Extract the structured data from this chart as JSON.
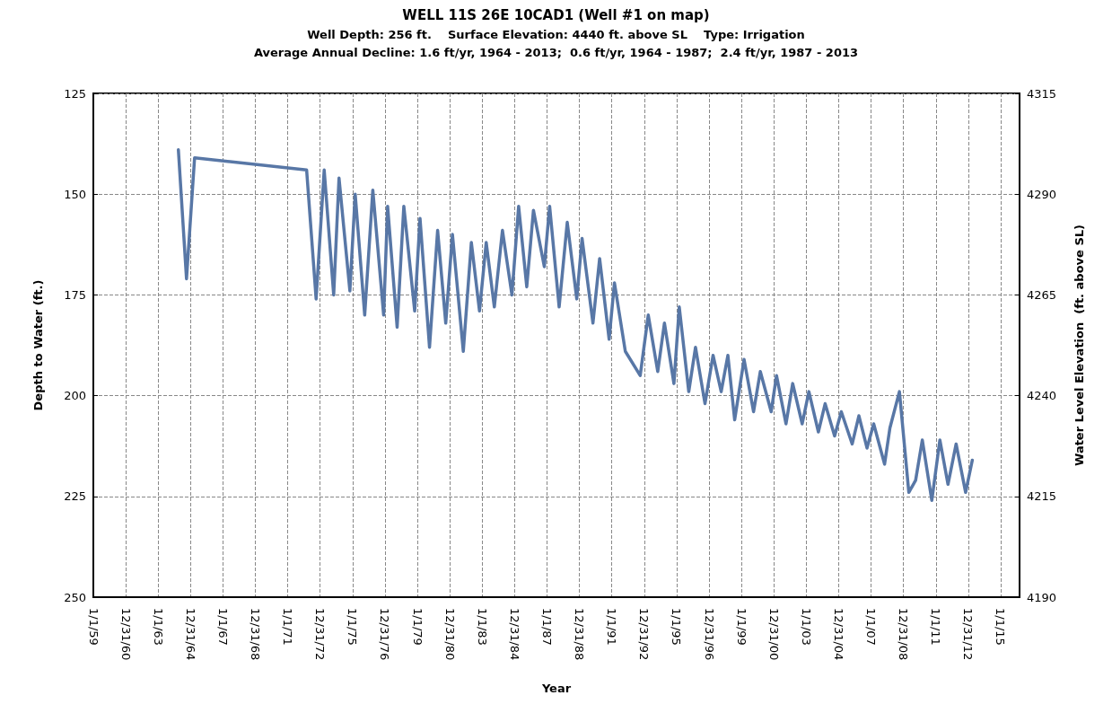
{
  "chart_data": {
    "type": "line",
    "title": "WELL 11S 26E 10CAD1 (Well #1 on map)",
    "subtitle": "Well Depth: 256 ft.    Surface Elevation: 4440 ft. above SL    Type: Irrigation\nAverage Annual Decline: 1.6 ft/yr, 1964 - 2013;  0.6 ft/yr, 1964 - 1987;  2.4 ft/yr, 1987 - 2013",
    "xlabel": "Year",
    "ylabel": "Depth to Water (ft.)",
    "y2label": "Water Level Elevation  (ft. above SL)",
    "x": [
      "1964-04",
      "1964-10",
      "1965-04",
      "1972-03",
      "1972-10",
      "1973-04",
      "1973-11",
      "1974-03",
      "1974-11",
      "1975-03",
      "1975-10",
      "1976-04",
      "1976-12",
      "1977-03",
      "1977-10",
      "1978-03",
      "1978-11",
      "1979-03",
      "1979-10",
      "1980-04",
      "1980-10",
      "1981-03",
      "1981-11",
      "1982-05",
      "1982-11",
      "1983-04",
      "1983-10",
      "1984-04",
      "1984-11",
      "1985-04",
      "1985-10",
      "1986-03",
      "1986-11",
      "1987-03",
      "1987-10",
      "1988-04",
      "1988-11",
      "1989-03",
      "1989-11",
      "1990-04",
      "1990-11",
      "1991-03",
      "1991-11",
      "1992-10",
      "1993-04",
      "1993-11",
      "1994-04",
      "1994-11",
      "1995-03",
      "1995-10",
      "1996-03",
      "1996-10",
      "1997-04",
      "1997-10",
      "1998-03",
      "1998-08",
      "1999-03",
      "1999-10",
      "2000-03",
      "2000-11",
      "2001-03",
      "2001-10",
      "2002-03",
      "2002-10",
      "2003-03",
      "2003-10",
      "2004-03",
      "2004-10",
      "2005-03",
      "2005-11",
      "2006-04",
      "2006-10",
      "2007-03",
      "2007-11",
      "2008-03",
      "2008-10",
      "2009-05",
      "2009-10",
      "2010-03",
      "2010-10",
      "2011-04",
      "2011-10",
      "2012-04",
      "2012-11",
      "2013-04"
    ],
    "series": [
      {
        "color": "#5877a6",
        "values": [
          139,
          171,
          141,
          144,
          176,
          144,
          175,
          146,
          174,
          150,
          180,
          149,
          180,
          153,
          183,
          153,
          179,
          156,
          188,
          159,
          182,
          160,
          189,
          162,
          179,
          162,
          178,
          159,
          175,
          153,
          173,
          154,
          168,
          153,
          178,
          157,
          176,
          161,
          182,
          166,
          186,
          172,
          189,
          195,
          180,
          194,
          182,
          197,
          178,
          199,
          188,
          202,
          190,
          199,
          190,
          206,
          191,
          204,
          194,
          204,
          195,
          207,
          197,
          207,
          199,
          209,
          202,
          210,
          204,
          212,
          205,
          213,
          207,
          217,
          208,
          199,
          224,
          221,
          211,
          226,
          211,
          222,
          212,
          224,
          216
        ]
      }
    ],
    "xlim": [
      "1959-01-01",
      "2016-03-01"
    ],
    "xticks": [
      {
        "value": "1959-01-01",
        "label": "1/1/59"
      },
      {
        "value": "1960-12-31",
        "label": "12/31/60"
      },
      {
        "value": "1963-01-01",
        "label": "1/1/63"
      },
      {
        "value": "1964-12-31",
        "label": "12/31/64"
      },
      {
        "value": "1967-01-01",
        "label": "1/1/67"
      },
      {
        "value": "1968-12-31",
        "label": "12/31/68"
      },
      {
        "value": "1971-01-01",
        "label": "1/1/71"
      },
      {
        "value": "1972-12-31",
        "label": "12/31/72"
      },
      {
        "value": "1975-01-01",
        "label": "1/1/75"
      },
      {
        "value": "1976-12-31",
        "label": "12/31/76"
      },
      {
        "value": "1979-01-01",
        "label": "1/1/79"
      },
      {
        "value": "1980-12-31",
        "label": "12/31/80"
      },
      {
        "value": "1983-01-01",
        "label": "1/1/83"
      },
      {
        "value": "1984-12-31",
        "label": "12/31/84"
      },
      {
        "value": "1987-01-01",
        "label": "1/1/87"
      },
      {
        "value": "1988-12-31",
        "label": "12/31/88"
      },
      {
        "value": "1991-01-01",
        "label": "1/1/91"
      },
      {
        "value": "1992-12-31",
        "label": "12/31/92"
      },
      {
        "value": "1995-01-01",
        "label": "1/1/95"
      },
      {
        "value": "1996-12-31",
        "label": "12/31/96"
      },
      {
        "value": "1999-01-01",
        "label": "1/1/99"
      },
      {
        "value": "2000-12-31",
        "label": "12/31/00"
      },
      {
        "value": "2003-01-01",
        "label": "1/1/03"
      },
      {
        "value": "2004-12-31",
        "label": "12/31/04"
      },
      {
        "value": "2007-01-01",
        "label": "1/1/07"
      },
      {
        "value": "2008-12-31",
        "label": "12/31/08"
      },
      {
        "value": "2011-01-01",
        "label": "1/1/11"
      },
      {
        "value": "2012-12-31",
        "label": "12/31/12"
      },
      {
        "value": "2015-01-01",
        "label": "1/1/15"
      }
    ],
    "ylim": [
      250,
      125
    ],
    "yticks": [
      125,
      150,
      175,
      200,
      225,
      250
    ],
    "y2lim": [
      4190,
      4315
    ],
    "y2ticks": [
      4190,
      4215,
      4240,
      4265,
      4290,
      4315
    ],
    "grid": true,
    "marker": "none",
    "line_style": "solid"
  }
}
